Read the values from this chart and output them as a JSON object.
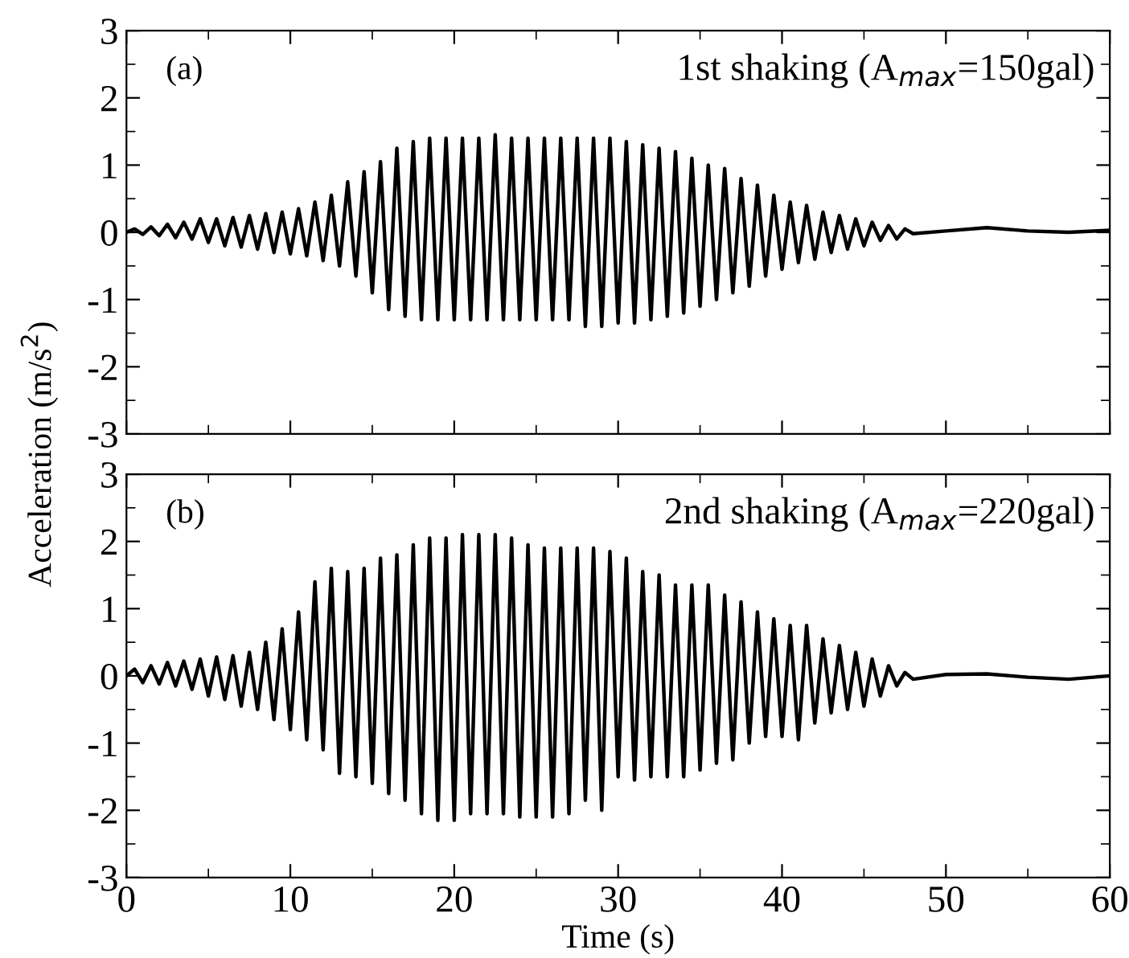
{
  "chart_data": [
    {
      "type": "line",
      "ylabel": "Acceleration (m/s$^{2}$)",
      "annotations": [
        "(a)",
        "1st shaking (A$_{max}$=150gal)"
      ],
      "tick_labels": "y",
      "x": [
        0,
        0.5,
        1,
        1.5,
        2,
        2.5,
        3,
        3.5,
        4,
        4.5,
        5,
        5.5,
        6,
        6.5,
        7,
        7.5,
        8,
        8.5,
        9,
        9.5,
        10,
        10.5,
        11,
        11.5,
        12,
        12.5,
        13,
        13.5,
        14,
        14.5,
        15,
        15.5,
        16,
        16.5,
        17,
        17.5,
        18,
        18.5,
        19,
        19.5,
        20,
        20.5,
        21,
        21.5,
        22,
        22.5,
        23,
        23.5,
        24,
        24.5,
        25,
        25.5,
        26,
        26.5,
        27,
        27.5,
        28,
        28.5,
        29,
        29.5,
        30,
        30.5,
        31,
        31.5,
        32,
        32.5,
        33,
        33.5,
        34,
        34.5,
        35,
        35.5,
        36,
        36.5,
        37,
        37.5,
        38,
        38.5,
        39,
        39.5,
        40,
        40.5,
        41,
        41.5,
        42,
        42.5,
        43,
        43.5,
        44,
        44.5,
        45,
        45.5,
        46,
        46.5,
        47,
        47.5,
        48,
        50,
        52.5,
        55,
        57.5,
        60
      ],
      "series": [
        {
          "color": "#000000",
          "values": [
            0,
            0.05,
            -0.03,
            0.08,
            -0.05,
            0.12,
            -0.08,
            0.15,
            -0.1,
            0.2,
            -0.15,
            0.2,
            -0.2,
            0.22,
            -0.22,
            0.25,
            -0.25,
            0.28,
            -0.3,
            0.3,
            -0.32,
            0.35,
            -0.35,
            0.45,
            -0.42,
            0.55,
            -0.5,
            0.75,
            -0.65,
            0.9,
            -0.9,
            1.05,
            -1.15,
            1.25,
            -1.25,
            1.35,
            -1.3,
            1.4,
            -1.3,
            1.4,
            -1.3,
            1.4,
            -1.3,
            1.4,
            -1.3,
            1.45,
            -1.3,
            1.4,
            -1.3,
            1.4,
            -1.3,
            1.4,
            -1.3,
            1.4,
            -1.3,
            1.4,
            -1.4,
            1.4,
            -1.4,
            1.4,
            -1.35,
            1.35,
            -1.35,
            1.3,
            -1.3,
            1.25,
            -1.25,
            1.2,
            -1.2,
            1.1,
            -1.1,
            1.0,
            -1.0,
            0.95,
            -0.9,
            0.8,
            -0.8,
            0.7,
            -0.65,
            0.55,
            -0.55,
            0.45,
            -0.45,
            0.4,
            -0.4,
            0.3,
            -0.3,
            0.25,
            -0.25,
            0.2,
            -0.2,
            0.15,
            -0.12,
            0.1,
            -0.1,
            0.05,
            -0.02,
            0.02,
            0.07,
            0.02,
            0,
            0.03
          ]
        }
      ],
      "xlim": [
        0,
        60
      ],
      "xticks": [
        0,
        10,
        20,
        30,
        40,
        50,
        60
      ],
      "ylim": [
        -3,
        3
      ],
      "yticks": [
        -3,
        -2,
        -1,
        0,
        1,
        2,
        3
      ],
      "grid": false,
      "legend": false,
      "line_style": "solid",
      "marker": "none"
    },
    {
      "type": "line",
      "xlabel": "Time (s)",
      "annotations": [
        "(b)",
        "2nd shaking (A$_{max}$=220gal)"
      ],
      "x": [
        0,
        0.5,
        1,
        1.5,
        2,
        2.5,
        3,
        3.5,
        4,
        4.5,
        5,
        5.5,
        6,
        6.5,
        7,
        7.5,
        8,
        8.5,
        9,
        9.5,
        10,
        10.5,
        11,
        11.5,
        12,
        12.5,
        13,
        13.5,
        14,
        14.5,
        15,
        15.5,
        16,
        16.5,
        17,
        17.5,
        18,
        18.5,
        19,
        19.5,
        20,
        20.5,
        21,
        21.5,
        22,
        22.5,
        23,
        23.5,
        24,
        24.5,
        25,
        25.5,
        26,
        26.5,
        27,
        27.5,
        28,
        28.5,
        29,
        29.5,
        30,
        30.5,
        31,
        31.5,
        32,
        32.5,
        33,
        33.5,
        34,
        34.5,
        35,
        35.5,
        36,
        36.5,
        37,
        37.5,
        38,
        38.5,
        39,
        39.5,
        40,
        40.5,
        41,
        41.5,
        42,
        42.5,
        43,
        43.5,
        44,
        44.5,
        45,
        45.5,
        46,
        46.5,
        47,
        47.5,
        48,
        50,
        52.5,
        55,
        57.5,
        60
      ],
      "series": [
        {
          "color": "#000000",
          "values": [
            0,
            0.1,
            -0.1,
            0.15,
            -0.12,
            0.2,
            -0.15,
            0.22,
            -0.2,
            0.25,
            -0.3,
            0.28,
            -0.35,
            0.3,
            -0.45,
            0.35,
            -0.5,
            0.5,
            -0.65,
            0.7,
            -0.8,
            0.95,
            -0.95,
            1.4,
            -1.1,
            1.6,
            -1.45,
            1.55,
            -1.5,
            1.6,
            -1.6,
            1.75,
            -1.75,
            1.8,
            -1.85,
            1.95,
            -2.05,
            2.05,
            -2.15,
            2.05,
            -2.15,
            2.1,
            -2.05,
            2.1,
            -2.05,
            2.1,
            -2.05,
            2.05,
            -2.1,
            1.95,
            -2.1,
            1.9,
            -2.1,
            1.9,
            -2.05,
            1.9,
            -1.85,
            1.9,
            -2.0,
            1.85,
            -1.5,
            1.75,
            -1.55,
            1.55,
            -1.5,
            1.5,
            -1.5,
            1.35,
            -1.5,
            1.35,
            -1.4,
            1.35,
            -1.3,
            1.2,
            -1.25,
            1.1,
            -1.0,
            0.95,
            -0.9,
            0.85,
            -0.9,
            0.75,
            -0.95,
            0.75,
            -0.7,
            0.55,
            -0.55,
            0.45,
            -0.5,
            0.35,
            -0.45,
            0.25,
            -0.3,
            0.15,
            -0.15,
            0.05,
            -0.05,
            0.02,
            0.03,
            -0.02,
            -0.05,
            0
          ]
        }
      ],
      "xlim": [
        0,
        60
      ],
      "xticks": [
        0,
        10,
        20,
        30,
        40,
        50,
        60
      ],
      "ylim": [
        -3,
        3
      ],
      "yticks": [
        -3,
        -2,
        -1,
        0,
        1,
        2,
        3
      ],
      "grid": false,
      "legend": false,
      "line_style": "solid",
      "marker": "none"
    }
  ]
}
